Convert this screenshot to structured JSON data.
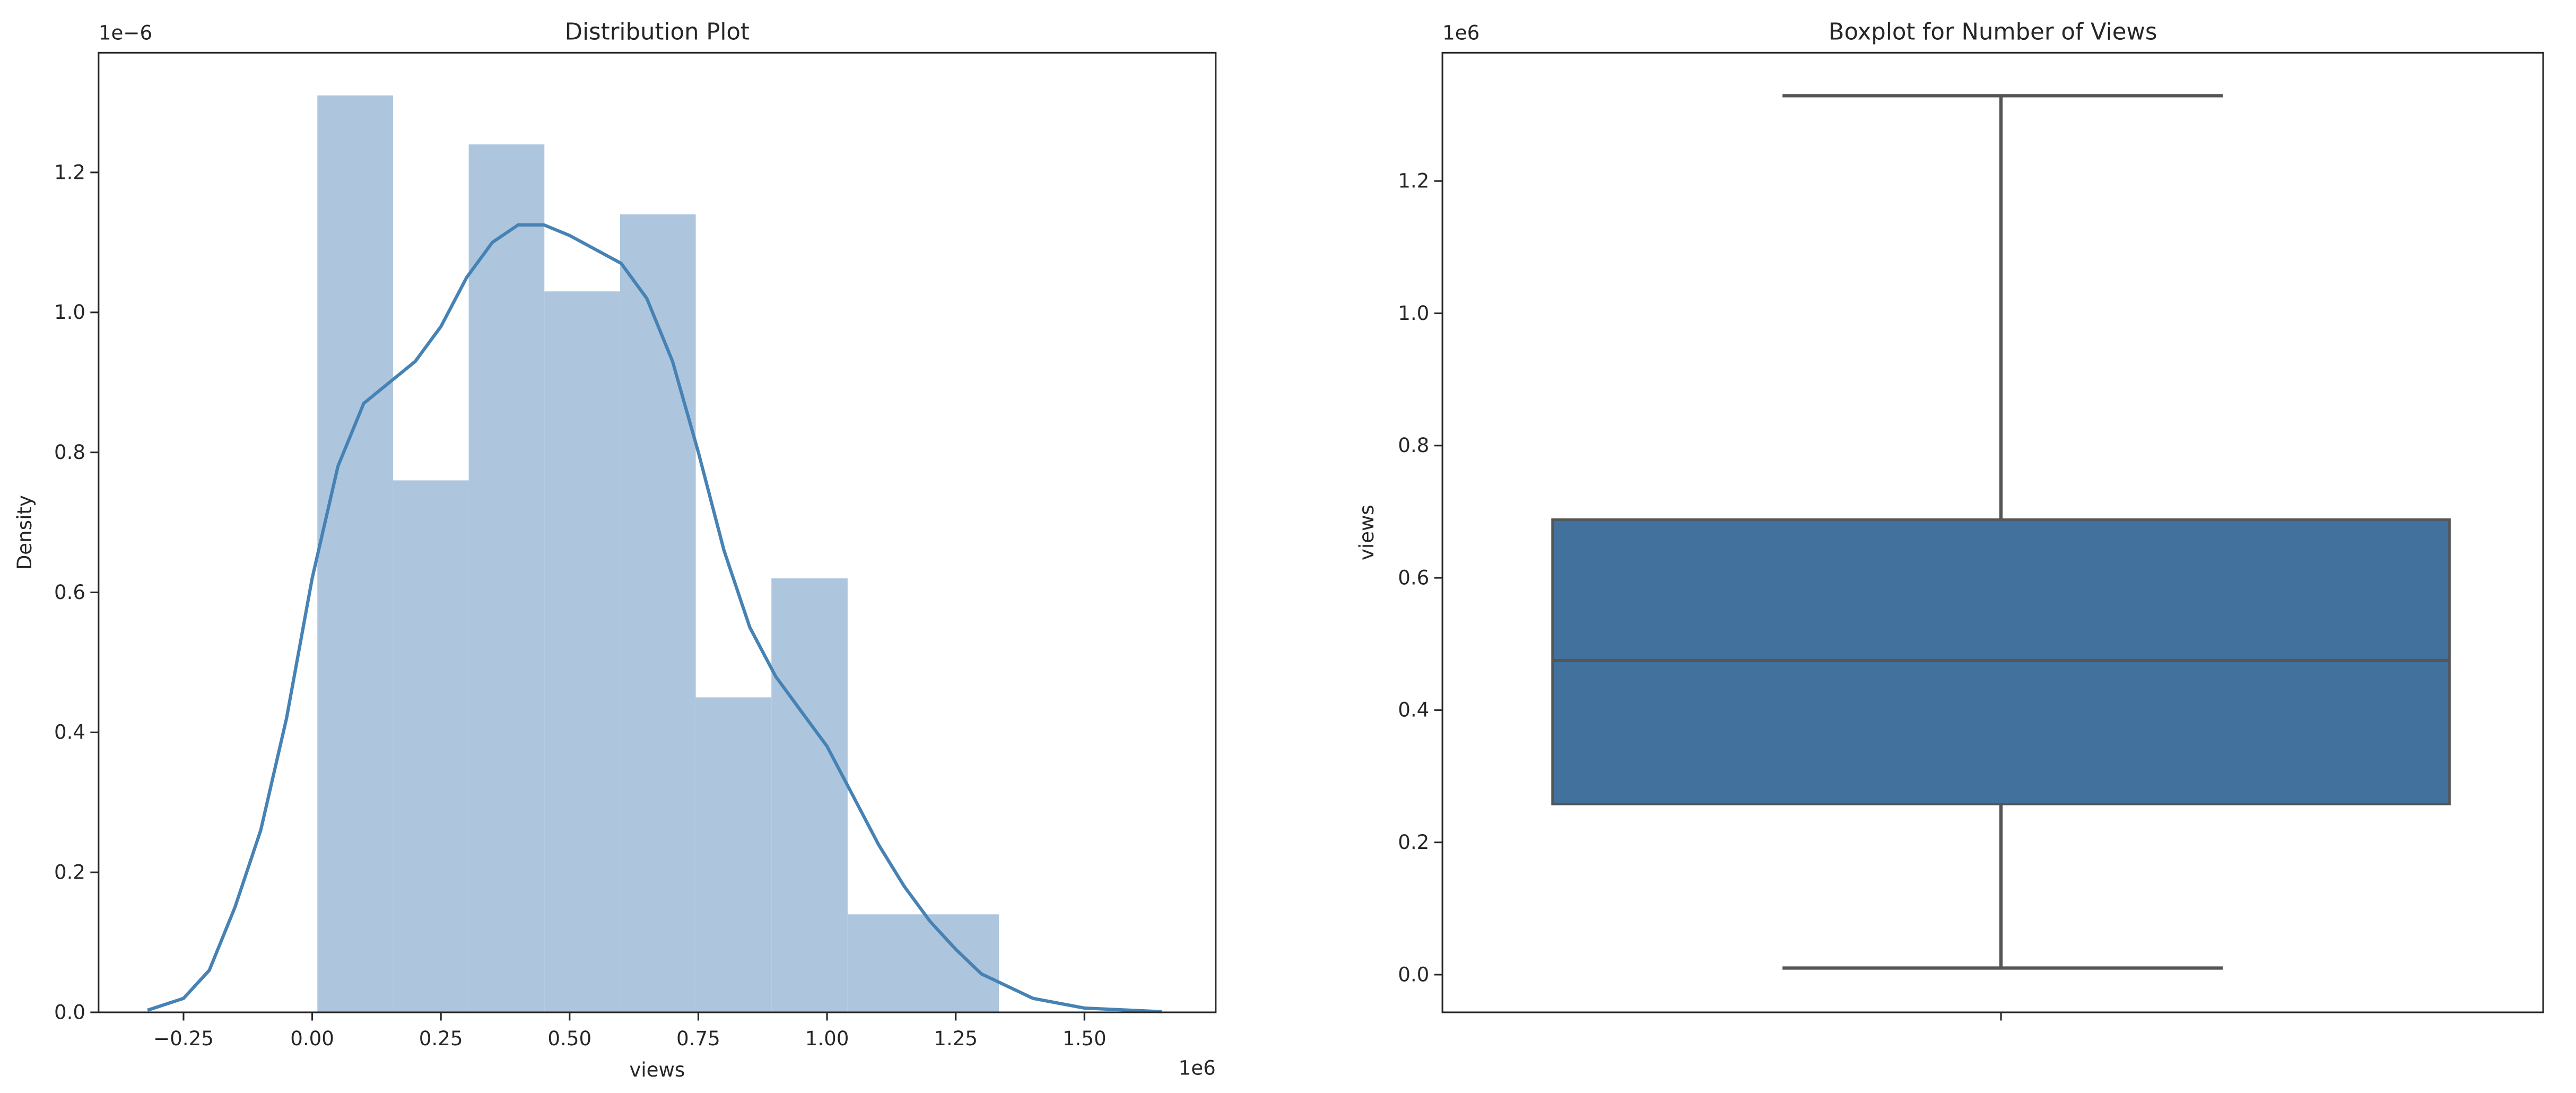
{
  "chart_data": [
    {
      "type": "histogram+kde",
      "title": "Distribution Plot",
      "xlabel": "views",
      "ylabel": "Density",
      "x_offset_label": "1e6",
      "y_offset_label": "1e−6",
      "xlim": [
        -0.415,
        1.755
      ],
      "ylim": [
        0,
        1.371
      ],
      "xticks": [
        -0.25,
        0.0,
        0.25,
        0.5,
        0.75,
        1.0,
        1.25,
        1.5
      ],
      "xtick_labels": [
        "−0.25",
        "0.00",
        "0.25",
        "0.50",
        "0.75",
        "1.00",
        "1.25",
        "1.50"
      ],
      "yticks": [
        0.0,
        0.2,
        0.4,
        0.6,
        0.8,
        1.0,
        1.2
      ],
      "ytick_labels": [
        "0.0",
        "0.2",
        "0.4",
        "0.6",
        "0.8",
        "1.0",
        "1.2"
      ],
      "bins": {
        "edges": [
          0.01,
          0.157,
          0.304,
          0.451,
          0.598,
          0.745,
          0.892,
          1.04,
          1.187,
          1.334
        ],
        "heights": [
          1.31,
          0.76,
          1.24,
          1.03,
          1.14,
          0.45,
          0.62,
          0.14,
          0.14
        ]
      },
      "kde": {
        "x": [
          -0.32,
          -0.25,
          -0.2,
          -0.15,
          -0.1,
          -0.05,
          0.0,
          0.05,
          0.1,
          0.15,
          0.2,
          0.25,
          0.3,
          0.35,
          0.4,
          0.45,
          0.5,
          0.55,
          0.6,
          0.65,
          0.7,
          0.75,
          0.8,
          0.85,
          0.9,
          0.95,
          1.0,
          1.05,
          1.1,
          1.15,
          1.2,
          1.25,
          1.3,
          1.4,
          1.5,
          1.65
        ],
        "y": [
          0.003,
          0.02,
          0.06,
          0.15,
          0.26,
          0.42,
          0.62,
          0.78,
          0.87,
          0.9,
          0.93,
          0.98,
          1.05,
          1.1,
          1.125,
          1.125,
          1.11,
          1.09,
          1.07,
          1.02,
          0.93,
          0.8,
          0.66,
          0.55,
          0.48,
          0.43,
          0.38,
          0.31,
          0.24,
          0.18,
          0.13,
          0.09,
          0.055,
          0.02,
          0.006,
          0.001
        ]
      },
      "colors": {
        "bars": "#adc6de",
        "line": "#4682b4"
      }
    },
    {
      "type": "box",
      "title": "Boxplot for Number of Views",
      "ylabel": "views",
      "y_offset_label": "1e6",
      "ylim": [
        -0.057,
        1.394
      ],
      "yticks": [
        0.0,
        0.2,
        0.4,
        0.6,
        0.8,
        1.0,
        1.2
      ],
      "ytick_labels": [
        "0.0",
        "0.2",
        "0.4",
        "0.6",
        "0.8",
        "1.0",
        "1.2"
      ],
      "whisker_low": 0.01,
      "q1": 0.258,
      "median": 0.475,
      "q3": 0.688,
      "whisker_high": 1.329,
      "colors": {
        "box": "#41719c",
        "lines": "#555555"
      }
    }
  ]
}
